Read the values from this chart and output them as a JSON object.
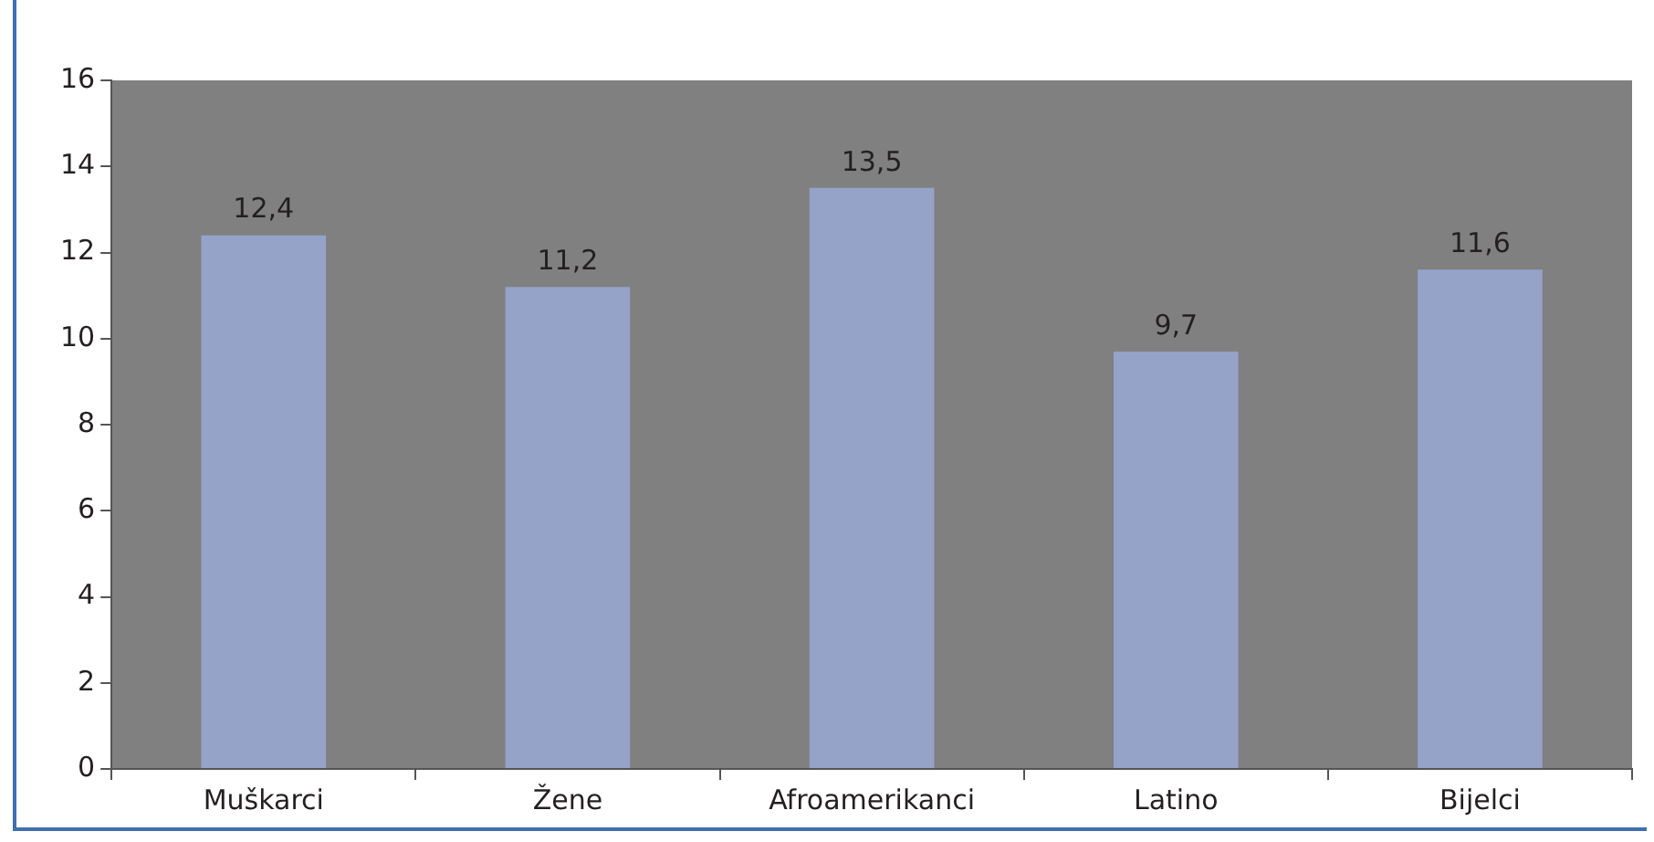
{
  "chart_data": {
    "type": "bar",
    "categories": [
      "Muškarci",
      "Žene",
      "Afroamerikanci",
      "Latino",
      "Bijelci"
    ],
    "values": [
      12.4,
      11.2,
      13.5,
      9.7,
      11.6
    ],
    "value_labels": [
      "12,4",
      "11,2",
      "13,5",
      "9,7",
      "11,6"
    ],
    "color": "#95a3c9",
    "ylim": [
      0,
      16
    ],
    "yticks": [
      0,
      2,
      4,
      6,
      8,
      10,
      12,
      14,
      16
    ],
    "grid": false,
    "legend": false
  }
}
